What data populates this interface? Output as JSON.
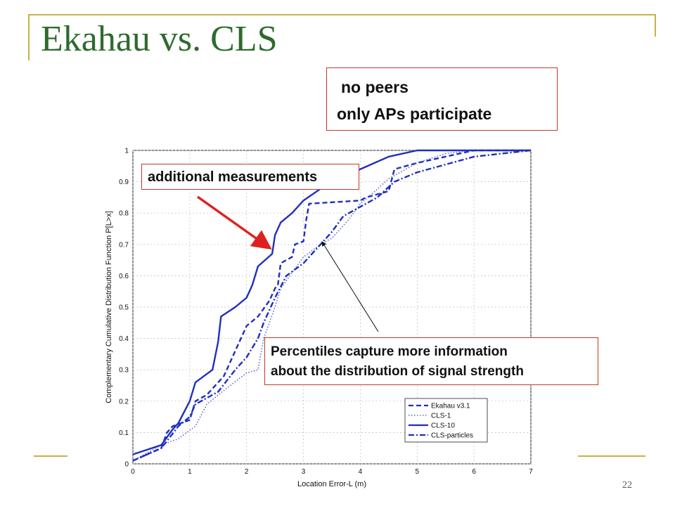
{
  "slide": {
    "title": "Ekahau vs. CLS",
    "page_number": "22",
    "callout_peers_line1": "no peers",
    "callout_peers_line2": "only APs participate",
    "callout_additional": "additional measurements",
    "callout_percentiles_line1": "Percentiles capture more information",
    "callout_percentiles_line2": "about the distribution of signal strength",
    "colors": {
      "title": "#2e6b2e",
      "accent_gold": "#c9b047",
      "callout_border": "#c0392b",
      "arrow_red": "#e02020",
      "series_blue": "#1f2fbf"
    }
  },
  "chart_data": {
    "type": "line",
    "xlabel": "Location Error-L (m)",
    "ylabel": "Complementary Cumulative Distribution Function P[L>x]",
    "xlim": [
      0,
      7
    ],
    "ylim": [
      0,
      1
    ],
    "xticks": [
      "0",
      "1",
      "2",
      "3",
      "4",
      "5",
      "6",
      "7"
    ],
    "yticks": [
      "0",
      "0.1",
      "0.2",
      "0.3",
      "0.4",
      "0.5",
      "0.6",
      "0.7",
      "0.8",
      "0.9",
      "1"
    ],
    "grid": true,
    "legend_position": "bottom-right",
    "series": [
      {
        "name": "Ekahau v3.1",
        "style": "dashed",
        "x": [
          0,
          0.5,
          0.6,
          0.7,
          1.0,
          1.1,
          1.3,
          1.6,
          1.8,
          2.0,
          2.2,
          2.4,
          2.5,
          2.55,
          2.6,
          2.8,
          2.85,
          3.0,
          3.05,
          3.1,
          4.0,
          4.1,
          4.5,
          4.6,
          5.0,
          5.5,
          6.0,
          7.0
        ],
        "y": [
          0.01,
          0.05,
          0.1,
          0.12,
          0.14,
          0.2,
          0.22,
          0.28,
          0.36,
          0.44,
          0.47,
          0.52,
          0.56,
          0.57,
          0.64,
          0.66,
          0.7,
          0.71,
          0.78,
          0.83,
          0.84,
          0.85,
          0.87,
          0.94,
          0.96,
          0.98,
          1.0,
          1.0
        ]
      },
      {
        "name": "CLS-1",
        "style": "dotted",
        "x": [
          0,
          0.5,
          0.8,
          1.1,
          1.3,
          1.5,
          2.0,
          2.2,
          2.3,
          2.5,
          2.6,
          3.0,
          3.3,
          3.5,
          3.8,
          4.0,
          4.2,
          4.5,
          5.0,
          5.5,
          6.0,
          7.0
        ],
        "y": [
          0.01,
          0.06,
          0.08,
          0.12,
          0.19,
          0.22,
          0.29,
          0.3,
          0.4,
          0.5,
          0.56,
          0.66,
          0.7,
          0.72,
          0.78,
          0.83,
          0.86,
          0.91,
          0.96,
          0.99,
          1.0,
          1.0
        ]
      },
      {
        "name": "CLS-10",
        "style": "solid",
        "x": [
          0,
          0.5,
          0.7,
          0.8,
          1.0,
          1.1,
          1.4,
          1.5,
          1.55,
          1.8,
          2.0,
          2.1,
          2.2,
          2.45,
          2.5,
          2.6,
          2.8,
          3.0,
          3.4,
          4.0,
          4.5,
          5.0,
          7.0
        ],
        "y": [
          0.03,
          0.06,
          0.11,
          0.13,
          0.2,
          0.26,
          0.3,
          0.39,
          0.47,
          0.5,
          0.53,
          0.57,
          0.63,
          0.67,
          0.73,
          0.77,
          0.8,
          0.84,
          0.89,
          0.94,
          0.98,
          1.0,
          1.0
        ]
      },
      {
        "name": "CLS-particles",
        "style": "dash-dot",
        "x": [
          0,
          0.5,
          0.8,
          1.0,
          1.1,
          1.5,
          1.8,
          2.0,
          2.2,
          2.3,
          2.5,
          2.7,
          3.0,
          3.3,
          3.5,
          3.7,
          4.0,
          4.3,
          4.6,
          5.0,
          6.0,
          7.0
        ],
        "y": [
          0.01,
          0.05,
          0.12,
          0.15,
          0.19,
          0.23,
          0.3,
          0.34,
          0.4,
          0.45,
          0.53,
          0.6,
          0.64,
          0.7,
          0.74,
          0.79,
          0.82,
          0.85,
          0.9,
          0.93,
          0.98,
          1.0
        ]
      }
    ]
  }
}
